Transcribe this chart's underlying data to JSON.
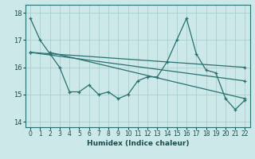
{
  "xlabel": "Humidex (Indice chaleur)",
  "ylabel": "",
  "bg_color": "#cce8e8",
  "grid_color": "#aacfcf",
  "line_color": "#2a7070",
  "xlim": [
    -0.5,
    22.5
  ],
  "ylim": [
    13.8,
    18.3
  ],
  "yticks": [
    14,
    15,
    16,
    17,
    18
  ],
  "xticks": [
    0,
    1,
    2,
    3,
    4,
    5,
    6,
    7,
    8,
    9,
    10,
    11,
    12,
    13,
    14,
    15,
    16,
    17,
    18,
    19,
    20,
    21,
    22
  ],
  "series1_x": [
    0,
    1,
    2,
    3,
    4,
    5,
    6,
    7,
    8,
    9,
    10,
    11,
    12,
    13,
    14,
    15,
    16,
    17,
    18,
    19,
    20,
    21,
    22
  ],
  "series1_y": [
    17.8,
    17.0,
    16.5,
    16.0,
    15.1,
    15.1,
    15.35,
    15.0,
    15.1,
    14.85,
    15.0,
    15.5,
    15.65,
    15.65,
    16.2,
    17.0,
    17.8,
    16.5,
    15.9,
    15.8,
    14.85,
    14.45,
    14.8
  ],
  "series2_x": [
    0,
    22
  ],
  "series2_y": [
    16.55,
    16.0
  ],
  "series3_x": [
    0,
    22
  ],
  "series3_y": [
    16.55,
    15.5
  ],
  "series4_x": [
    2,
    22
  ],
  "series4_y": [
    16.55,
    14.85
  ]
}
